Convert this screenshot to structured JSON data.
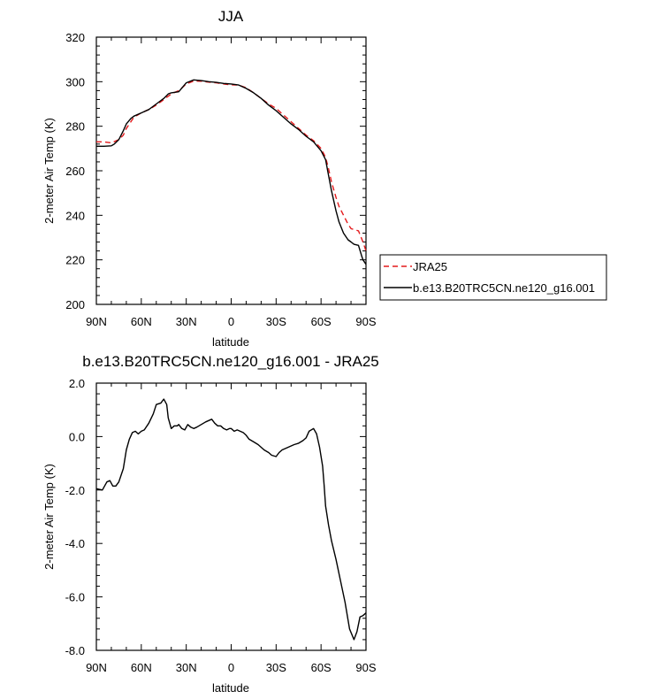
{
  "chart_data": [
    {
      "type": "line",
      "title": "JJA",
      "xlabel": "latitude",
      "ylabel": "2-meter Air Temp (K)",
      "xlim": [
        90,
        -90
      ],
      "ylim": [
        200,
        320
      ],
      "x_tick_labels": [
        "90N",
        "60N",
        "30N",
        "0",
        "30S",
        "60S",
        "90S"
      ],
      "x_tick_values": [
        90,
        60,
        30,
        0,
        -30,
        -60,
        -90
      ],
      "y_tick_labels": [
        "200",
        "220",
        "240",
        "260",
        "280",
        "300",
        "320"
      ],
      "y_tick_values": [
        200,
        220,
        240,
        260,
        280,
        300,
        320
      ],
      "legend": "right",
      "grid": false,
      "series": [
        {
          "name": "JRA25",
          "color": "#e41a1c",
          "style": "dashed",
          "x": [
            90,
            85,
            80,
            75,
            72,
            70,
            67,
            65,
            60,
            55,
            50,
            45,
            40,
            35,
            30,
            25,
            20,
            15,
            10,
            5,
            0,
            -5,
            -10,
            -15,
            -20,
            -25,
            -30,
            -35,
            -40,
            -45,
            -50,
            -55,
            -60,
            -63,
            -65,
            -67,
            -70,
            -72,
            -75,
            -78,
            -80,
            -85,
            -88,
            -90
          ],
          "y": [
            273,
            273,
            272.5,
            274,
            276,
            279,
            282,
            284,
            286,
            287.5,
            289.5,
            292,
            294.5,
            296,
            299,
            300.3,
            300.2,
            299.8,
            299.5,
            299,
            298.6,
            298.5,
            297.3,
            295,
            292.5,
            290,
            288,
            285,
            282,
            279,
            276,
            273.5,
            270,
            266,
            261,
            255,
            248,
            244,
            240,
            236,
            234,
            233,
            228,
            224
          ]
        },
        {
          "name": "b.e13.B20TRC5CN.ne120_g16.001",
          "color": "#000000",
          "style": "solid",
          "x": [
            90,
            85,
            80,
            78,
            75,
            72,
            70,
            67,
            65,
            60,
            55,
            50,
            45,
            42,
            40,
            35,
            30,
            25,
            20,
            15,
            10,
            5,
            0,
            -5,
            -10,
            -15,
            -20,
            -25,
            -30,
            -35,
            -40,
            -45,
            -50,
            -55,
            -60,
            -63,
            -65,
            -67,
            -70,
            -72,
            -75,
            -78,
            -80,
            -82,
            -85,
            -87,
            -88,
            -90
          ],
          "y": [
            271,
            271,
            271.2,
            272,
            274,
            278,
            281,
            283.5,
            284.5,
            286,
            287.5,
            290,
            292.5,
            294.5,
            295,
            295.5,
            299.5,
            300.8,
            300.5,
            300,
            299.7,
            299.2,
            299,
            298.5,
            297,
            295,
            292.5,
            289.5,
            287,
            284,
            281,
            278.5,
            275.5,
            273,
            269,
            265,
            258,
            251,
            242,
            237,
            232,
            229,
            228,
            227,
            226.5,
            222,
            220,
            218
          ]
        }
      ]
    },
    {
      "type": "line",
      "title": "b.e13.B20TRC5CN.ne120_g16.001 - JRA25",
      "xlabel": "latitude",
      "ylabel": "2-meter Air Temp (K)",
      "xlim": [
        90,
        -90
      ],
      "ylim": [
        -8,
        2
      ],
      "x_tick_labels": [
        "90N",
        "60N",
        "30N",
        "0",
        "30S",
        "60S",
        "90S"
      ],
      "x_tick_values": [
        90,
        60,
        30,
        0,
        -30,
        -60,
        -90
      ],
      "y_tick_labels": [
        "-8.0",
        "-6.0",
        "-4.0",
        "-2.0",
        "0.0",
        "2.0"
      ],
      "y_tick_values": [
        -8,
        -6,
        -4,
        -2,
        0,
        2
      ],
      "grid": false,
      "series": [
        {
          "color": "#000000",
          "style": "solid",
          "x": [
            90,
            86,
            83,
            81,
            79,
            77,
            75,
            72,
            70,
            68,
            66,
            64,
            62,
            60,
            58,
            55,
            52,
            50,
            47,
            45,
            43,
            42,
            40,
            38,
            36,
            35,
            33,
            31,
            29,
            27,
            25,
            23,
            20,
            17,
            15,
            13,
            11,
            9,
            7,
            5,
            3,
            1,
            0,
            -2,
            -4,
            -6,
            -8,
            -10,
            -12,
            -15,
            -18,
            -20,
            -22,
            -25,
            -27,
            -30,
            -32,
            -34,
            -36,
            -38,
            -40,
            -42,
            -45,
            -48,
            -50,
            -52,
            -55,
            -57,
            -59,
            -61,
            -62,
            -63,
            -65,
            -67,
            -70,
            -73,
            -76,
            -79,
            -82,
            -84,
            -86,
            -88,
            -90
          ],
          "y": [
            -1.95,
            -2,
            -1.7,
            -1.65,
            -1.85,
            -1.85,
            -1.7,
            -1.2,
            -0.5,
            -0.1,
            0.15,
            0.2,
            0.1,
            0.2,
            0.25,
            0.5,
            0.85,
            1.2,
            1.25,
            1.4,
            1.2,
            0.7,
            0.3,
            0.4,
            0.4,
            0.45,
            0.3,
            0.25,
            0.45,
            0.35,
            0.3,
            0.35,
            0.45,
            0.55,
            0.6,
            0.65,
            0.5,
            0.4,
            0.4,
            0.3,
            0.25,
            0.3,
            0.3,
            0.2,
            0.25,
            0.2,
            0.15,
            0.05,
            -0.1,
            -0.2,
            -0.3,
            -0.4,
            -0.5,
            -0.6,
            -0.7,
            -0.75,
            -0.6,
            -0.5,
            -0.45,
            -0.4,
            -0.35,
            -0.3,
            -0.25,
            -0.15,
            -0.05,
            0.2,
            0.3,
            0.1,
            -0.4,
            -1.1,
            -1.8,
            -2.6,
            -3.3,
            -3.9,
            -4.6,
            -5.4,
            -6.2,
            -7.2,
            -7.6,
            -7.3,
            -6.75,
            -6.7,
            -6.6
          ]
        }
      ]
    }
  ]
}
